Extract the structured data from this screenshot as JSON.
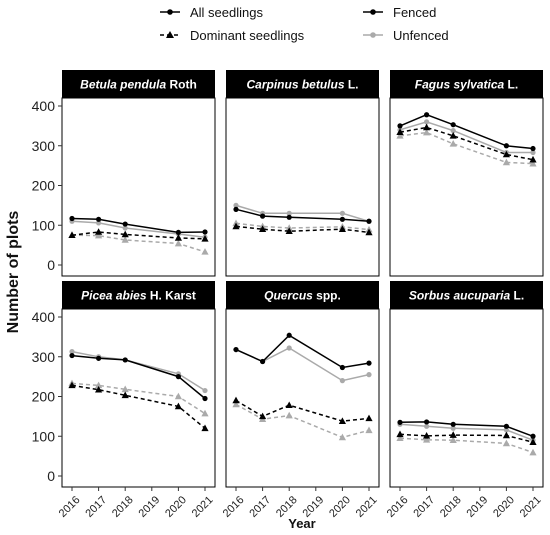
{
  "chart_data": {
    "type": "line",
    "xlabel": "Year",
    "ylabel": "Number of plots",
    "x": [
      2016,
      2017,
      2018,
      2019,
      2020,
      2021
    ],
    "ylim": [
      0,
      400
    ],
    "yticks": [
      0,
      100,
      200,
      300,
      400
    ],
    "grid": false,
    "legend": {
      "placement": "top",
      "linetype_title": "",
      "color_title": "",
      "items": [
        {
          "key": "all",
          "label": "All seedlings",
          "kind": "linetype"
        },
        {
          "key": "dominant",
          "label": "Dominant seedlings",
          "kind": "linetype"
        },
        {
          "key": "fenced",
          "label": "Fenced",
          "kind": "color"
        },
        {
          "key": "unfenced",
          "label": "Unfenced",
          "kind": "color"
        }
      ]
    },
    "colors": {
      "fenced": "#000000",
      "unfenced": "#aaaaaa"
    },
    "panels": [
      {
        "strip": {
          "italic": "Betula pendula",
          "normal": " Roth"
        },
        "series": [
          {
            "group": "all",
            "treatment": "fenced",
            "x": [
              2016,
              2017,
              2018,
              2020,
              2021
            ],
            "values": [
              117,
              115,
              103,
              82,
              83
            ]
          },
          {
            "group": "all",
            "treatment": "unfenced",
            "x": [
              2016,
              2017,
              2018,
              2020,
              2021
            ],
            "values": [
              110,
              106,
              93,
              78,
              70
            ]
          },
          {
            "group": "dominant",
            "treatment": "fenced",
            "x": [
              2016,
              2017,
              2018,
              2020,
              2021
            ],
            "values": [
              75,
              83,
              77,
              68,
              66
            ]
          },
          {
            "group": "dominant",
            "treatment": "unfenced",
            "x": [
              2016,
              2017,
              2018,
              2020,
              2021
            ],
            "values": [
              75,
              74,
              63,
              54,
              33
            ]
          }
        ]
      },
      {
        "strip": {
          "italic": "Carpinus betulus",
          "normal": " L."
        },
        "series": [
          {
            "group": "all",
            "treatment": "fenced",
            "x": [
              2016,
              2017,
              2018,
              2020,
              2021
            ],
            "values": [
              140,
              123,
              120,
              115,
              110
            ]
          },
          {
            "group": "all",
            "treatment": "unfenced",
            "x": [
              2016,
              2017,
              2018,
              2020,
              2021
            ],
            "values": [
              150,
              130,
              130,
              130,
              110
            ]
          },
          {
            "group": "dominant",
            "treatment": "fenced",
            "x": [
              2016,
              2017,
              2018,
              2020,
              2021
            ],
            "values": [
              97,
              90,
              85,
              90,
              82
            ]
          },
          {
            "group": "dominant",
            "treatment": "unfenced",
            "x": [
              2016,
              2017,
              2018,
              2020,
              2021
            ],
            "values": [
              105,
              97,
              93,
              96,
              89
            ]
          }
        ]
      },
      {
        "strip": {
          "italic": "Fagus sylvatica",
          "normal": " L."
        },
        "series": [
          {
            "group": "all",
            "treatment": "fenced",
            "x": [
              2016,
              2017,
              2018,
              2020,
              2021
            ],
            "values": [
              350,
              378,
              353,
              300,
              293
            ]
          },
          {
            "group": "all",
            "treatment": "unfenced",
            "x": [
              2016,
              2017,
              2018,
              2020,
              2021
            ],
            "values": [
              340,
              360,
              338,
              283,
              283
            ]
          },
          {
            "group": "dominant",
            "treatment": "fenced",
            "x": [
              2016,
              2017,
              2018,
              2020,
              2021
            ],
            "values": [
              334,
              346,
              325,
              278,
              265
            ]
          },
          {
            "group": "dominant",
            "treatment": "unfenced",
            "x": [
              2016,
              2017,
              2018,
              2020,
              2021
            ],
            "values": [
              325,
              333,
              305,
              258,
              255
            ]
          }
        ]
      },
      {
        "strip": {
          "italic": "Picea abies",
          "normal": " H. Karst"
        },
        "series": [
          {
            "group": "all",
            "treatment": "fenced",
            "x": [
              2016,
              2017,
              2018,
              2020,
              2021
            ],
            "values": [
              303,
              296,
              292,
              250,
              195
            ]
          },
          {
            "group": "all",
            "treatment": "unfenced",
            "x": [
              2016,
              2017,
              2018,
              2020,
              2021
            ],
            "values": [
              313,
              300,
              292,
              257,
              215
            ]
          },
          {
            "group": "dominant",
            "treatment": "fenced",
            "x": [
              2016,
              2017,
              2018,
              2020,
              2021
            ],
            "values": [
              228,
              217,
              203,
              175,
              120
            ]
          },
          {
            "group": "dominant",
            "treatment": "unfenced",
            "x": [
              2016,
              2017,
              2018,
              2020,
              2021
            ],
            "values": [
              233,
              228,
              218,
              200,
              157
            ]
          }
        ]
      },
      {
        "strip": {
          "italic": "Quercus",
          "normal": " spp."
        },
        "series": [
          {
            "group": "all",
            "treatment": "fenced",
            "x": [
              2016,
              2017,
              2018,
              2020,
              2021
            ],
            "values": [
              318,
              288,
              354,
              273,
              284
            ]
          },
          {
            "group": "all",
            "treatment": "unfenced",
            "x": [
              2016,
              2017,
              2018,
              2020,
              2021
            ],
            "values": [
              318,
              288,
              322,
              240,
              255
            ]
          },
          {
            "group": "dominant",
            "treatment": "fenced",
            "x": [
              2016,
              2017,
              2018,
              2020,
              2021
            ],
            "values": [
              190,
              150,
              178,
              138,
              145
            ]
          },
          {
            "group": "dominant",
            "treatment": "unfenced",
            "x": [
              2016,
              2017,
              2018,
              2020,
              2021
            ],
            "values": [
              180,
              143,
              152,
              97,
              115
            ]
          }
        ]
      },
      {
        "strip": {
          "italic": "Sorbus aucuparia",
          "normal": " L."
        },
        "series": [
          {
            "group": "all",
            "treatment": "fenced",
            "x": [
              2016,
              2017,
              2018,
              2020,
              2021
            ],
            "values": [
              135,
              136,
              130,
              125,
              100
            ]
          },
          {
            "group": "all",
            "treatment": "unfenced",
            "x": [
              2016,
              2017,
              2018,
              2020,
              2021
            ],
            "values": [
              130,
              125,
              120,
              116,
              90
            ]
          },
          {
            "group": "dominant",
            "treatment": "fenced",
            "x": [
              2016,
              2017,
              2018,
              2020,
              2021
            ],
            "values": [
              105,
              101,
              103,
              102,
              85
            ]
          },
          {
            "group": "dominant",
            "treatment": "unfenced",
            "x": [
              2016,
              2017,
              2018,
              2020,
              2021
            ],
            "values": [
              95,
              91,
              90,
              82,
              59
            ]
          }
        ]
      }
    ]
  }
}
